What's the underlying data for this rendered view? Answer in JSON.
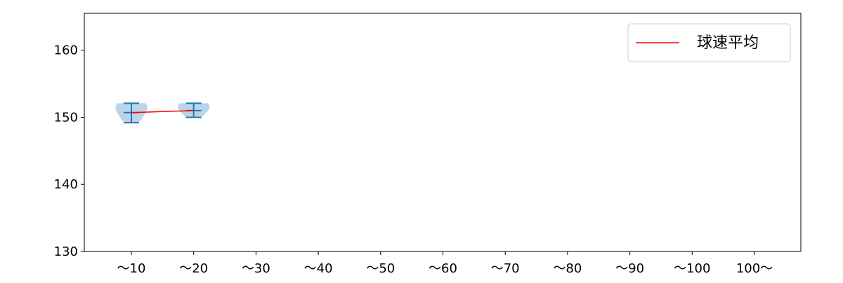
{
  "chart_data": {
    "type": "violin",
    "categories": [
      "〜10",
      "〜20",
      "〜30",
      "〜40",
      "〜50",
      "〜60",
      "〜70",
      "〜80",
      "〜90",
      "〜100",
      "100〜"
    ],
    "ylim": [
      130,
      165.5
    ],
    "yticks": [
      130,
      140,
      150,
      160
    ],
    "grid": false,
    "legend": {
      "placement": "top-right",
      "entries": [
        {
          "label": "球速平均",
          "color": "#ff0000"
        }
      ]
    },
    "violin_color": "#b4cfe6",
    "whisker_color": "#1f77b4",
    "violins": [
      {
        "category": "〜10",
        "min": 149.2,
        "max": 152.1,
        "mean": 150.7
      },
      {
        "category": "〜20",
        "min": 150.0,
        "max": 152.1,
        "mean": 151.0
      }
    ],
    "mean_line": {
      "name": "球速平均",
      "x": [
        "〜10",
        "〜20"
      ],
      "y": [
        150.7,
        151.0
      ],
      "color": "#ff0000"
    }
  }
}
